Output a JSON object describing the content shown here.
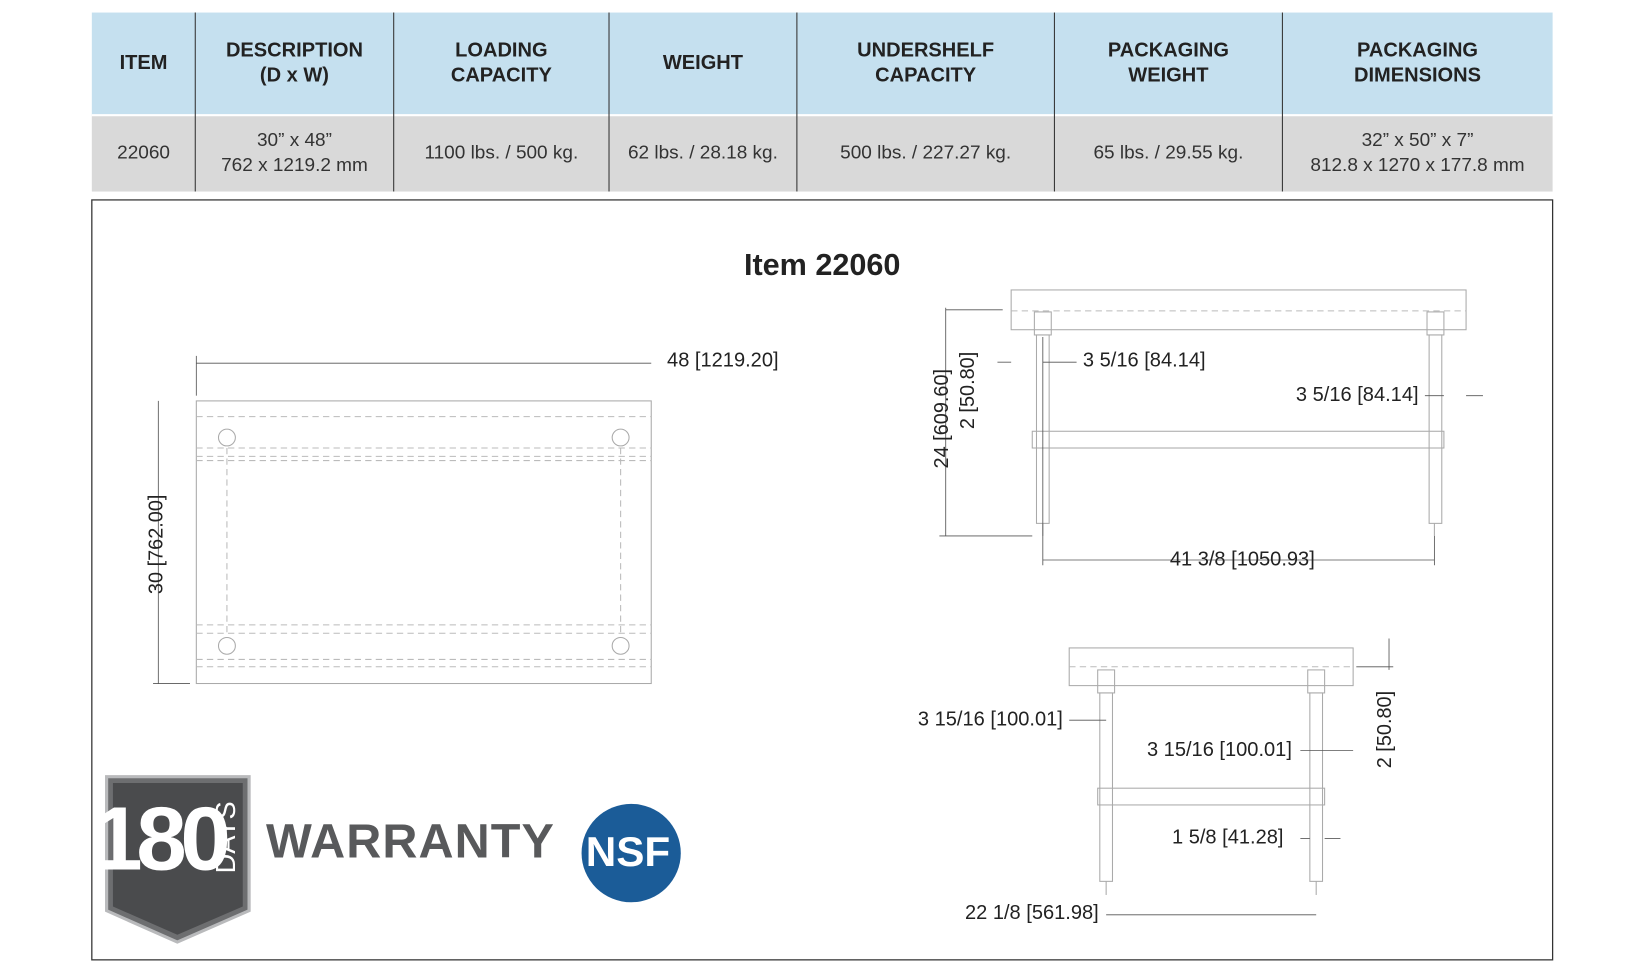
{
  "table": {
    "headers": [
      [
        "ITEM"
      ],
      [
        "DESCRIPTION",
        "(D x W)"
      ],
      [
        "LOADING",
        "CAPACITY"
      ],
      [
        "WEIGHT"
      ],
      [
        "UNDERSHELF",
        "CAPACITY"
      ],
      [
        "PACKAGING",
        "WEIGHT"
      ],
      [
        "PACKAGING",
        "DIMENSIONS"
      ]
    ],
    "rows": [
      [
        [
          "22060"
        ],
        [
          "30” x 48”",
          "762 x 1219.2 mm"
        ],
        [
          "1100 lbs. / 500 kg."
        ],
        [
          "62 lbs. / 28.18 kg."
        ],
        [
          "500 lbs. / 227.27 kg."
        ],
        [
          "65 lbs. / 29.55 kg."
        ],
        [
          "32” x 50” x 7”",
          "812.8 x 1270 x 177.8 mm"
        ]
      ]
    ]
  },
  "drawing": {
    "title": "Item 22060",
    "dimensions": [
      "48 [1219.20]",
      "30 [762.00]",
      "24 [609.60]",
      "2 [50.80]",
      "3 5/16 [84.14]",
      "3 5/16 [84.14]",
      "41 3/8 [1050.93]",
      "3 15/16 [100.01]",
      "3 15/16 [100.01]",
      "2 [50.80]",
      "1 5/8 [41.28]",
      "22 1/8 [561.98]"
    ]
  },
  "badges": {
    "days_number": "180",
    "days_word": "DAYS",
    "warranty": "WARRANTY",
    "certification": "NSF"
  }
}
